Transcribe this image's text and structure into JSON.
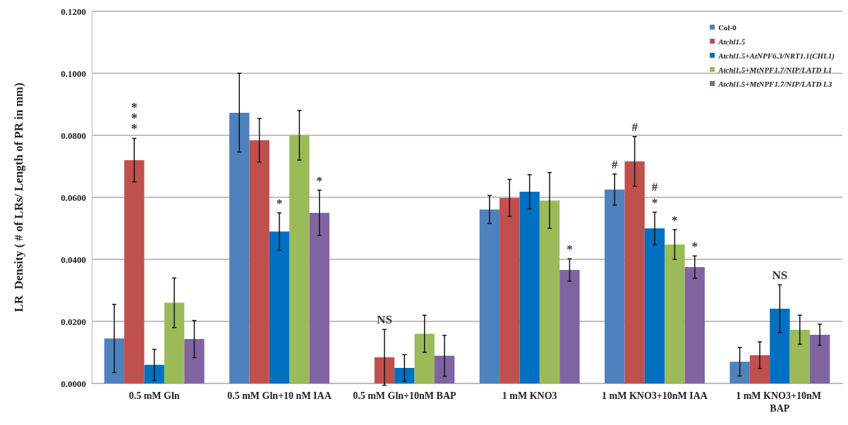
{
  "chart_data": {
    "type": "bar",
    "ylabel": "LR  Density ( # of LRs/ Length of PR in mm)",
    "categories": [
      "0.5 mM Gln",
      "0.5 mM Gln+10 nM IAA",
      "0.5 mM Gln+10nM BAP",
      "1 mM KNO3",
      "1 mM KNO3+10nM IAA",
      "1 mM KNO3+10nM BAP"
    ],
    "series": [
      {
        "name": "Col-0",
        "color": "#4f81bd",
        "values": [
          0.0145,
          0.0873,
          null,
          0.0561,
          0.0625,
          0.007
        ],
        "errors": [
          0.011,
          0.0127,
          null,
          0.0045,
          0.005,
          0.0046
        ]
      },
      {
        "name": "Atchl1.5",
        "color": "#c0504d",
        "values": [
          0.072,
          0.0784,
          0.0084,
          0.0598,
          0.0716,
          0.0091
        ],
        "errors": [
          0.007,
          0.007,
          0.009,
          0.006,
          0.008,
          0.0043
        ]
      },
      {
        "name": "Atchl1.5+AtNPF6.3/NRT1.1(CHL1)",
        "color": "#0070c0",
        "values": [
          0.006,
          0.049,
          0.005,
          0.0618,
          0.05,
          0.0241
        ],
        "errors": [
          0.005,
          0.006,
          0.0043,
          0.0055,
          0.0052,
          0.0077
        ]
      },
      {
        "name": "Atchl1.5+MtNPF1.7/NIP/LATD L1",
        "color": "#9bbb59",
        "values": [
          0.026,
          0.08,
          0.016,
          0.059,
          0.0448,
          0.0173
        ],
        "errors": [
          0.008,
          0.008,
          0.006,
          0.009,
          0.0048,
          0.0047
        ]
      },
      {
        "name": "Atchl1.5+MtNPF1.7/NIP/LATD L3",
        "color": "#8064a2",
        "values": [
          0.0143,
          0.055,
          0.0089,
          0.0366,
          0.0375,
          0.0157
        ],
        "errors": [
          0.006,
          0.0073,
          0.0066,
          0.0036,
          0.0036,
          0.0034
        ]
      }
    ],
    "ylim": [
      0,
      0.12
    ],
    "yticks": [
      {
        "value": 0,
        "label": "0.0000"
      },
      {
        "value": 0.02,
        "label": "0.0200"
      },
      {
        "value": 0.04,
        "label": "0.0400"
      },
      {
        "value": 0.06,
        "label": "0.0600"
      },
      {
        "value": 0.08,
        "label": "0.0800"
      },
      {
        "value": 0.1,
        "label": "0.1000"
      },
      {
        "value": 0.12,
        "label": "0.1200"
      }
    ],
    "grid": "y",
    "legend": "top right",
    "annotations": [
      "***",
      "*",
      "*",
      "NS",
      "*",
      "#",
      "#",
      "*",
      "#",
      "*",
      "*",
      "NS"
    ]
  }
}
